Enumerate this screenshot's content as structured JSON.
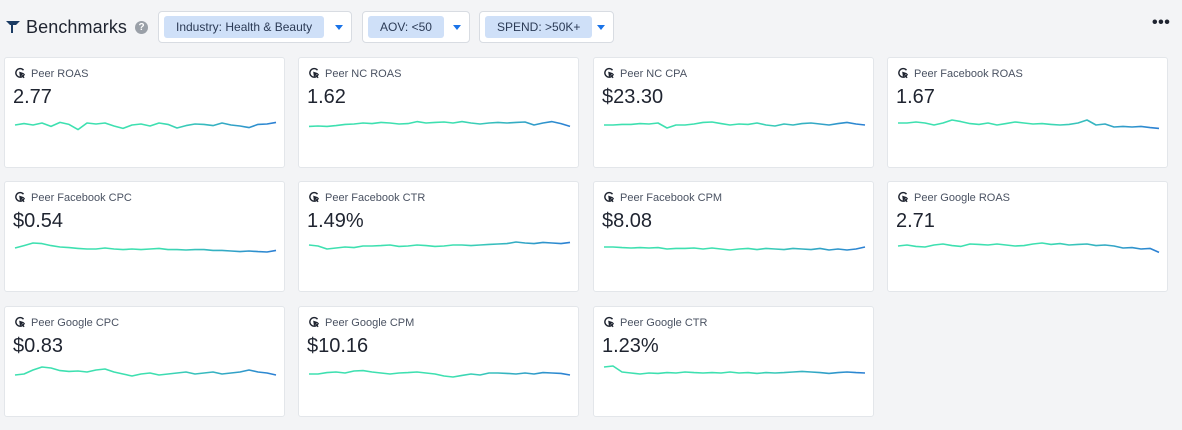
{
  "header": {
    "title": "Benchmarks",
    "help_glyph": "?",
    "more_glyph": "•••",
    "filters": [
      {
        "label": "Industry: Health & Beauty"
      },
      {
        "label": "AOV: <50"
      },
      {
        "label": "SPEND: >50K+"
      }
    ]
  },
  "colors": {
    "spark_start": "#3ee0b0",
    "spark_end": "#2b7fd4",
    "accent": "#1a73e8",
    "pill_bg": "#cfe0f8"
  },
  "cards": [
    {
      "label": "Peer ROAS",
      "value": "2.77",
      "trend": [
        0.55,
        0.48,
        0.55,
        0.45,
        0.62,
        0.42,
        0.52,
        0.78,
        0.45,
        0.5,
        0.45,
        0.6,
        0.72,
        0.55,
        0.5,
        0.6,
        0.45,
        0.52,
        0.7,
        0.58,
        0.5,
        0.52,
        0.58,
        0.45,
        0.55,
        0.6,
        0.68,
        0.52,
        0.5,
        0.42
      ]
    },
    {
      "label": "Peer NC ROAS",
      "value": "1.62",
      "trend": [
        0.62,
        0.6,
        0.62,
        0.58,
        0.52,
        0.5,
        0.45,
        0.48,
        0.42,
        0.45,
        0.5,
        0.48,
        0.38,
        0.45,
        0.42,
        0.4,
        0.45,
        0.38,
        0.45,
        0.5,
        0.45,
        0.42,
        0.45,
        0.42,
        0.4,
        0.55,
        0.45,
        0.38,
        0.48,
        0.62
      ]
    },
    {
      "label": "Peer NC CPA",
      "value": "$23.30",
      "trend": [
        0.55,
        0.55,
        0.52,
        0.52,
        0.48,
        0.5,
        0.45,
        0.7,
        0.55,
        0.55,
        0.5,
        0.42,
        0.4,
        0.48,
        0.55,
        0.5,
        0.52,
        0.45,
        0.55,
        0.6,
        0.5,
        0.55,
        0.48,
        0.45,
        0.5,
        0.55,
        0.48,
        0.42,
        0.5,
        0.55
      ]
    },
    {
      "label": "Peer Facebook ROAS",
      "value": "1.67",
      "trend": [
        0.45,
        0.45,
        0.4,
        0.45,
        0.55,
        0.45,
        0.3,
        0.38,
        0.48,
        0.52,
        0.45,
        0.55,
        0.48,
        0.4,
        0.45,
        0.5,
        0.48,
        0.52,
        0.55,
        0.52,
        0.45,
        0.3,
        0.55,
        0.5,
        0.65,
        0.62,
        0.65,
        0.62,
        0.68,
        0.72
      ]
    },
    {
      "label": "Peer Facebook CPC",
      "value": "$0.54",
      "trend": [
        0.5,
        0.38,
        0.25,
        0.28,
        0.38,
        0.45,
        0.48,
        0.52,
        0.55,
        0.55,
        0.5,
        0.55,
        0.58,
        0.55,
        0.58,
        0.55,
        0.52,
        0.58,
        0.58,
        0.6,
        0.58,
        0.58,
        0.62,
        0.62,
        0.65,
        0.68,
        0.65,
        0.68,
        0.7,
        0.62
      ]
    },
    {
      "label": "Peer Facebook CTR",
      "value": "1.49%",
      "trend": [
        0.35,
        0.4,
        0.55,
        0.5,
        0.45,
        0.48,
        0.4,
        0.4,
        0.38,
        0.35,
        0.42,
        0.4,
        0.35,
        0.38,
        0.42,
        0.4,
        0.35,
        0.35,
        0.38,
        0.35,
        0.32,
        0.3,
        0.28,
        0.2,
        0.25,
        0.28,
        0.22,
        0.25,
        0.28,
        0.22
      ]
    },
    {
      "label": "Peer Facebook CPM",
      "value": "$8.08",
      "trend": [
        0.45,
        0.45,
        0.48,
        0.5,
        0.48,
        0.5,
        0.48,
        0.55,
        0.52,
        0.52,
        0.5,
        0.55,
        0.5,
        0.55,
        0.6,
        0.55,
        0.52,
        0.58,
        0.52,
        0.55,
        0.58,
        0.52,
        0.55,
        0.58,
        0.52,
        0.6,
        0.55,
        0.6,
        0.55,
        0.45
      ]
    },
    {
      "label": "Peer Google ROAS",
      "value": "2.71",
      "trend": [
        0.4,
        0.35,
        0.42,
        0.45,
        0.35,
        0.3,
        0.38,
        0.42,
        0.3,
        0.32,
        0.35,
        0.3,
        0.35,
        0.4,
        0.38,
        0.3,
        0.25,
        0.32,
        0.28,
        0.35,
        0.32,
        0.3,
        0.38,
        0.35,
        0.4,
        0.5,
        0.48,
        0.55,
        0.52,
        0.72
      ]
    },
    {
      "label": "Peer Google CPC",
      "value": "$0.83",
      "trend": [
        0.6,
        0.55,
        0.35,
        0.2,
        0.25,
        0.38,
        0.42,
        0.4,
        0.45,
        0.35,
        0.3,
        0.45,
        0.55,
        0.65,
        0.55,
        0.5,
        0.6,
        0.55,
        0.5,
        0.45,
        0.55,
        0.5,
        0.45,
        0.55,
        0.5,
        0.45,
        0.35,
        0.45,
        0.5,
        0.6
      ]
    },
    {
      "label": "Peer Google CPM",
      "value": "$10.16",
      "trend": [
        0.55,
        0.55,
        0.48,
        0.45,
        0.5,
        0.4,
        0.38,
        0.45,
        0.5,
        0.55,
        0.5,
        0.48,
        0.45,
        0.5,
        0.55,
        0.65,
        0.7,
        0.62,
        0.55,
        0.6,
        0.5,
        0.5,
        0.52,
        0.55,
        0.5,
        0.55,
        0.48,
        0.5,
        0.52,
        0.6
      ]
    },
    {
      "label": "Peer Google CTR",
      "value": "1.23%",
      "trend": [
        0.2,
        0.15,
        0.45,
        0.5,
        0.55,
        0.5,
        0.52,
        0.48,
        0.5,
        0.45,
        0.48,
        0.5,
        0.48,
        0.5,
        0.45,
        0.5,
        0.48,
        0.52,
        0.48,
        0.5,
        0.48,
        0.45,
        0.42,
        0.45,
        0.48,
        0.52,
        0.48,
        0.45,
        0.48,
        0.5
      ]
    }
  ]
}
